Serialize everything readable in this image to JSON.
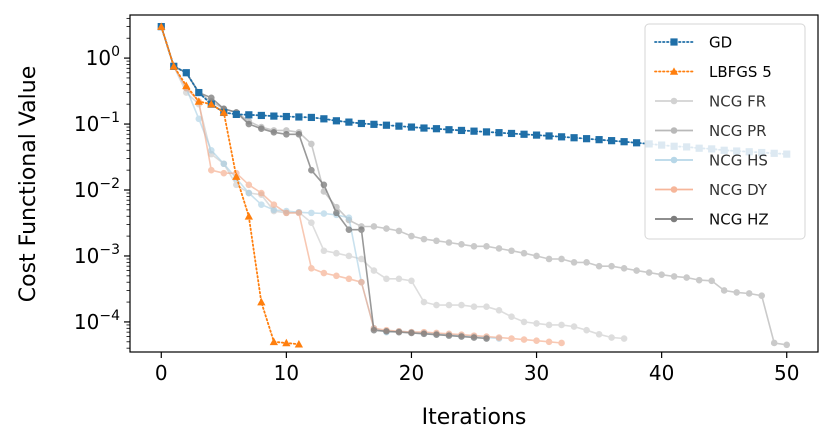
{
  "chart_data": {
    "type": "line",
    "title": "",
    "xlabel": "Iterations",
    "ylabel": "Cost Functional Value",
    "xlim": [
      -2.5,
      52.5
    ],
    "ylim": [
      3.5e-05,
      4.5
    ],
    "yscale": "log",
    "x_ticks": [
      {
        "value": 0,
        "label": "0"
      },
      {
        "value": 10,
        "label": "10"
      },
      {
        "value": 20,
        "label": "20"
      },
      {
        "value": 30,
        "label": "30"
      },
      {
        "value": 40,
        "label": "40"
      },
      {
        "value": 50,
        "label": "50"
      }
    ],
    "y_ticks": [
      {
        "value": 0.0001,
        "base": "10",
        "exp": "−4"
      },
      {
        "value": 0.001,
        "base": "10",
        "exp": "−3"
      },
      {
        "value": 0.01,
        "base": "10",
        "exp": "−2"
      },
      {
        "value": 0.1,
        "base": "10",
        "exp": "−1"
      },
      {
        "value": 1,
        "base": "10",
        "exp": "0"
      }
    ],
    "legend_position": "top-right",
    "series": [
      {
        "name": "GD",
        "color": "#1f6fa8",
        "marker": "square",
        "linestyle": "dotted",
        "opacity": 1,
        "x": [
          0,
          1,
          2,
          3,
          4,
          5,
          6,
          7,
          8,
          9,
          10,
          11,
          12,
          13,
          14,
          15,
          16,
          17,
          18,
          19,
          20,
          21,
          22,
          23,
          24,
          25,
          26,
          27,
          28,
          29,
          30,
          31,
          32,
          33,
          34,
          35,
          36,
          37,
          38,
          39,
          40,
          41,
          42,
          43,
          44,
          45,
          46,
          47,
          48,
          49,
          50
        ],
        "y": [
          3.0,
          0.75,
          0.6,
          0.3,
          0.2,
          0.15,
          0.14,
          0.138,
          0.135,
          0.132,
          0.13,
          0.128,
          0.126,
          0.12,
          0.112,
          0.107,
          0.102,
          0.099,
          0.096,
          0.093,
          0.09,
          0.087,
          0.085,
          0.082,
          0.08,
          0.078,
          0.076,
          0.074,
          0.072,
          0.07,
          0.068,
          0.066,
          0.064,
          0.062,
          0.06,
          0.058,
          0.056,
          0.054,
          0.052,
          0.05,
          0.048,
          0.046,
          0.045,
          0.043,
          0.042,
          0.04,
          0.039,
          0.038,
          0.037,
          0.036,
          0.035
        ]
      },
      {
        "name": "LBFGS 5",
        "color": "#ff7f0e",
        "marker": "triangle",
        "linestyle": "dotted",
        "opacity": 1,
        "x": [
          0,
          1,
          2,
          3,
          4,
          5,
          6,
          7,
          8,
          9,
          10,
          11
        ],
        "y": [
          3.0,
          0.75,
          0.38,
          0.22,
          0.2,
          0.15,
          0.016,
          0.004,
          0.0002,
          5e-05,
          4.8e-05,
          4.6e-05
        ]
      },
      {
        "name": "NCG FR",
        "color": "#c8c8c8",
        "marker": "circle",
        "linestyle": "solid",
        "opacity": 0.6,
        "x": [
          0,
          1,
          2,
          3,
          4,
          5,
          6,
          7,
          8,
          9,
          10,
          11,
          12,
          13,
          14,
          15,
          16,
          17,
          18,
          19,
          20,
          21,
          22,
          23,
          24,
          25,
          26,
          27,
          28,
          29,
          30,
          31,
          32,
          33,
          34,
          35,
          36,
          37
        ],
        "y": [
          3.0,
          0.75,
          0.3,
          0.2,
          0.035,
          0.025,
          0.012,
          0.009,
          0.0085,
          0.0048,
          0.0045,
          0.0046,
          0.0032,
          0.0012,
          0.0011,
          0.001,
          0.0009,
          0.0006,
          0.00045,
          0.00045,
          0.00042,
          0.0002,
          0.00018,
          0.00018,
          0.00018,
          0.00017,
          0.00017,
          0.00015,
          0.00012,
          0.0001,
          9.5e-05,
          9e-05,
          9e-05,
          8.5e-05,
          7.5e-05,
          6.5e-05,
          5.8e-05,
          5.6e-05
        ]
      },
      {
        "name": "NCG PR",
        "color": "#a8a8a8",
        "marker": "circle",
        "linestyle": "solid",
        "opacity": 0.6,
        "x": [
          0,
          1,
          2,
          3,
          4,
          5,
          6,
          7,
          8,
          9,
          10,
          11,
          12,
          13,
          14,
          15,
          16,
          17,
          18,
          19,
          20,
          21,
          22,
          23,
          24,
          25,
          26,
          27,
          28,
          29,
          30,
          31,
          32,
          33,
          34,
          35,
          36,
          37,
          38,
          39,
          40,
          41,
          42,
          43,
          44,
          45,
          46,
          47,
          48,
          49,
          50
        ],
        "y": [
          3.0,
          0.75,
          0.6,
          0.3,
          0.22,
          0.17,
          0.15,
          0.11,
          0.09,
          0.08,
          0.08,
          0.075,
          0.05,
          0.0095,
          0.0055,
          0.0035,
          0.0028,
          0.0028,
          0.0026,
          0.0024,
          0.002,
          0.0018,
          0.0017,
          0.0016,
          0.0015,
          0.0014,
          0.0014,
          0.0013,
          0.0012,
          0.0011,
          0.001,
          0.0009,
          0.0009,
          0.0008,
          0.0008,
          0.0007,
          0.0007,
          0.00065,
          0.0006,
          0.00056,
          0.00052,
          0.00049,
          0.00047,
          0.00043,
          0.00042,
          0.0003,
          0.00028,
          0.00027,
          0.00025,
          4.8e-05,
          4.5e-05
        ]
      },
      {
        "name": "NCG HS",
        "color": "#a6cee3",
        "marker": "circle",
        "linestyle": "solid",
        "opacity": 0.6,
        "x": [
          0,
          1,
          2,
          3,
          4,
          5,
          6,
          7,
          8,
          9,
          10,
          11,
          12,
          13,
          14,
          15,
          16,
          17,
          18,
          19,
          20,
          21,
          22,
          23,
          24,
          25,
          26,
          27
        ],
        "y": [
          3.0,
          0.75,
          0.35,
          0.12,
          0.04,
          0.025,
          0.015,
          0.009,
          0.006,
          0.005,
          0.0048,
          0.0046,
          0.0045,
          0.0044,
          0.0042,
          0.0038,
          0.0004,
          8e-05,
          7e-05,
          7.2e-05,
          7e-05,
          6.8e-05,
          6.6e-05,
          6.4e-05,
          6.2e-05,
          6e-05,
          5.8e-05,
          5.6e-05
        ]
      },
      {
        "name": "NCG DY",
        "color": "#f4a582",
        "marker": "circle",
        "linestyle": "solid",
        "opacity": 0.6,
        "x": [
          0,
          1,
          2,
          3,
          4,
          5,
          6,
          7,
          8,
          9,
          10,
          11,
          12,
          13,
          14,
          15,
          16,
          17,
          18,
          19,
          20,
          21,
          22,
          23,
          24,
          25,
          26,
          27,
          28,
          29,
          30,
          31,
          32
        ],
        "y": [
          3.0,
          0.75,
          0.35,
          0.22,
          0.02,
          0.018,
          0.018,
          0.012,
          0.009,
          0.006,
          0.0045,
          0.0045,
          0.00065,
          0.00055,
          0.0005,
          0.00045,
          0.0004,
          8e-05,
          7.5e-05,
          7.2e-05,
          7e-05,
          7e-05,
          6.8e-05,
          6.6e-05,
          6.4e-05,
          6.2e-05,
          6e-05,
          5.8e-05,
          5.6e-05,
          5.4e-05,
          5.2e-05,
          5e-05,
          4.8e-05
        ]
      },
      {
        "name": "NCG HZ",
        "color": "#777777",
        "marker": "circle",
        "linestyle": "solid",
        "opacity": 0.75,
        "x": [
          0,
          1,
          2,
          3,
          4,
          5,
          6,
          7,
          8,
          9,
          10,
          11,
          12,
          13,
          14,
          15,
          16,
          17,
          18,
          19,
          20,
          21,
          22,
          23,
          24,
          25,
          26
        ],
        "y": [
          3.0,
          0.75,
          0.6,
          0.3,
          0.25,
          0.17,
          0.15,
          0.1,
          0.085,
          0.075,
          0.07,
          0.07,
          0.02,
          0.012,
          0.0045,
          0.0025,
          0.0025,
          7.5e-05,
          7.2e-05,
          7e-05,
          6.8e-05,
          6.6e-05,
          6.4e-05,
          6.2e-05,
          6e-05,
          5.8e-05,
          5.6e-05
        ]
      }
    ]
  }
}
